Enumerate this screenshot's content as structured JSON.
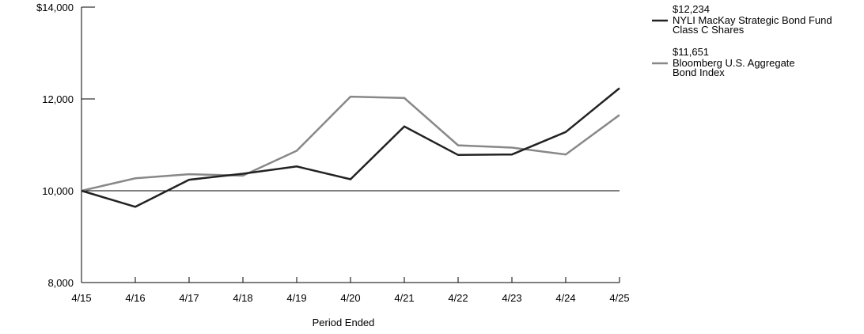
{
  "chart_data": {
    "type": "line",
    "x": [
      "4/15",
      "4/16",
      "4/17",
      "4/18",
      "4/19",
      "4/20",
      "4/21",
      "4/22",
      "4/23",
      "4/24",
      "4/25"
    ],
    "yticks": [
      "8,000",
      "10,000",
      "12,000",
      "$14,000"
    ],
    "ylim": [
      8000,
      14000
    ],
    "ytick_values": [
      8000,
      10000,
      12000,
      14000
    ],
    "reference_line": 10000,
    "xlabel": "Period Ended",
    "ylabel": "",
    "grid": false,
    "legend_position": "right",
    "series": [
      {
        "name_lines": [
          "NYLI MacKay Strategic Bond Fund",
          "Class C Shares"
        ],
        "end_value_label": "$12,234",
        "color": "#222222",
        "values": [
          10000,
          9650,
          10240,
          10370,
          10530,
          10250,
          11400,
          10780,
          10790,
          11280,
          12234
        ]
      },
      {
        "name_lines": [
          "Bloomberg  U.S. Aggregate",
          "Bond Index"
        ],
        "end_value_label": "$11,651",
        "color": "#888888",
        "values": [
          10000,
          10270,
          10360,
          10330,
          10870,
          12050,
          12020,
          10990,
          10940,
          10790,
          11651
        ]
      }
    ]
  }
}
